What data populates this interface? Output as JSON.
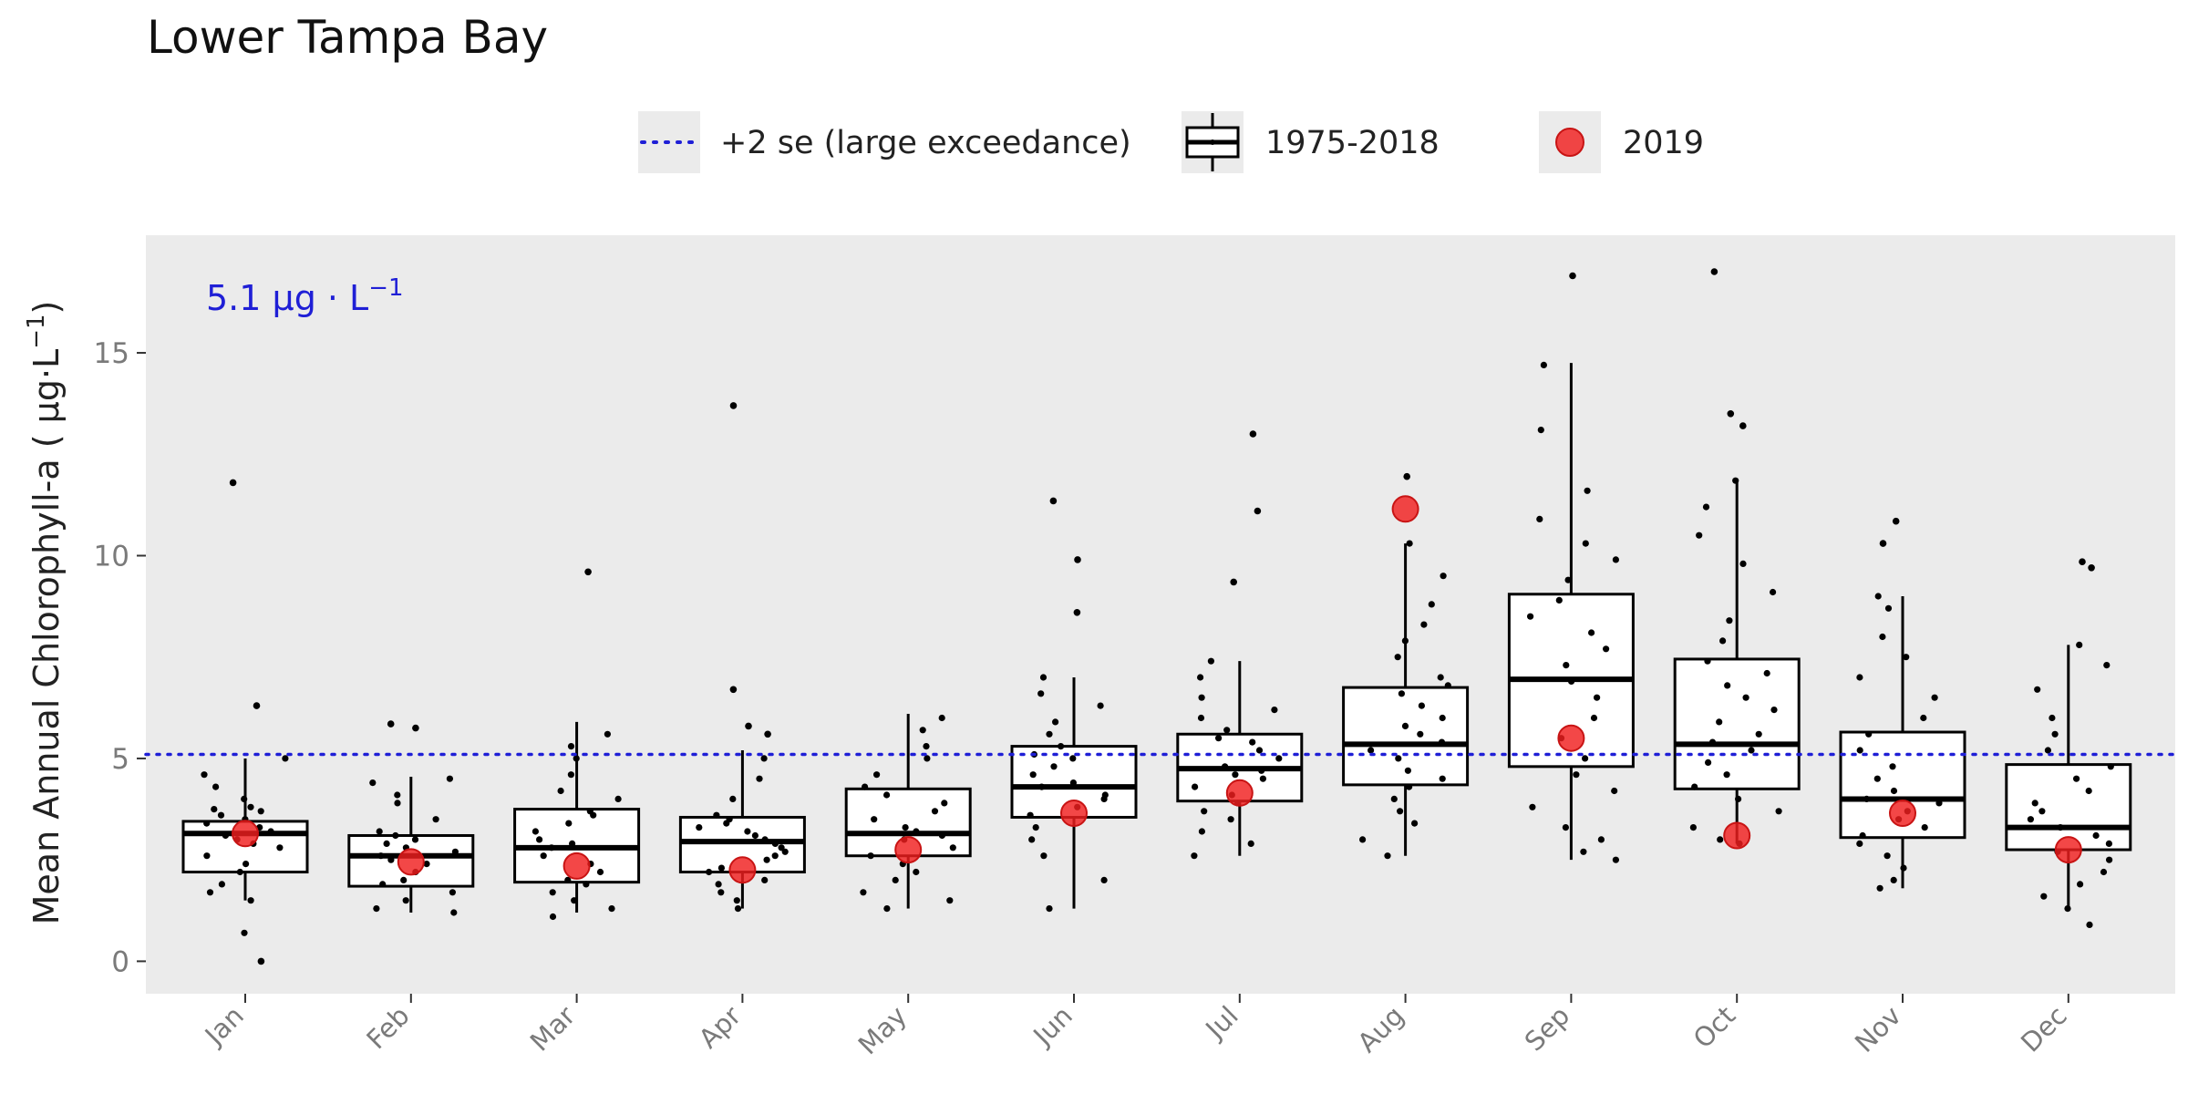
{
  "chart_data": {
    "type": "boxplot",
    "title": "Lower Tampa Bay",
    "xlabel": "",
    "ylabel": "Mean Annual Chlorophyll-a ( µg·L",
    "ylabel_sup": "−1",
    "ylabel_close": ")",
    "ylim": [
      -0.8,
      17.9
    ],
    "yticks": [
      "0",
      "5",
      "10",
      "15"
    ],
    "categories": [
      "Jan",
      "Feb",
      "Mar",
      "Apr",
      "May",
      "Jun",
      "Jul",
      "Aug",
      "Sep",
      "Oct",
      "Nov",
      "Dec"
    ],
    "threshold": {
      "value": 5.1,
      "label_main": "5.1 µg · L",
      "label_sup": "−1",
      "color": "#1f1fd6",
      "linestyle": "dotted"
    },
    "legend": [
      {
        "label": "+2 se (large exceedance)",
        "type": "dotted-line"
      },
      {
        "label": "1975-2018",
        "type": "boxplot"
      },
      {
        "label": "2019",
        "type": "red-point"
      }
    ],
    "colors": {
      "panel": "#ebebeb",
      "box_fill": "#ffffff",
      "highlight": "#f01e1e",
      "points": "#000000"
    },
    "boxes": [
      {
        "month": "Jan",
        "whisker_low": 1.5,
        "q1": 2.2,
        "median": 3.15,
        "q3": 3.45,
        "whisker_high": 5.0,
        "outliers": [
          0.0,
          6.3,
          11.8
        ]
      },
      {
        "month": "Feb",
        "whisker_low": 1.2,
        "q1": 1.85,
        "median": 2.6,
        "q3": 3.1,
        "whisker_high": 4.55,
        "outliers": [
          5.75,
          5.85
        ]
      },
      {
        "month": "Mar",
        "whisker_low": 1.2,
        "q1": 1.95,
        "median": 2.8,
        "q3": 3.75,
        "whisker_high": 5.9,
        "outliers": [
          9.6
        ]
      },
      {
        "month": "Apr",
        "whisker_low": 1.3,
        "q1": 2.2,
        "median": 2.95,
        "q3": 3.55,
        "whisker_high": 5.2,
        "outliers": [
          5.6,
          5.8,
          6.7,
          13.7
        ]
      },
      {
        "month": "May",
        "whisker_low": 1.3,
        "q1": 2.6,
        "median": 3.15,
        "q3": 4.25,
        "whisker_high": 6.1,
        "outliers": []
      },
      {
        "month": "Jun",
        "whisker_low": 1.3,
        "q1": 3.55,
        "median": 4.3,
        "q3": 5.3,
        "whisker_high": 7.0,
        "outliers": [
          8.6,
          9.9,
          11.35
        ]
      },
      {
        "month": "Jul",
        "whisker_low": 2.6,
        "q1": 3.95,
        "median": 4.75,
        "q3": 5.6,
        "whisker_high": 7.4,
        "outliers": [
          9.35,
          11.1,
          13.0
        ]
      },
      {
        "month": "Aug",
        "whisker_low": 2.6,
        "q1": 4.35,
        "median": 5.35,
        "q3": 6.75,
        "whisker_high": 10.3,
        "outliers": [
          11.95
        ]
      },
      {
        "month": "Sep",
        "whisker_low": 2.5,
        "q1": 4.8,
        "median": 6.95,
        "q3": 9.05,
        "whisker_high": 14.75,
        "outliers": [
          16.9
        ]
      },
      {
        "month": "Oct",
        "whisker_low": 2.9,
        "q1": 4.25,
        "median": 5.35,
        "q3": 7.45,
        "whisker_high": 11.85,
        "outliers": [
          13.2,
          13.5,
          17.0
        ]
      },
      {
        "month": "Nov",
        "whisker_low": 1.8,
        "q1": 3.05,
        "median": 4.0,
        "q3": 5.65,
        "whisker_high": 9.0,
        "outliers": [
          10.3,
          10.85
        ]
      },
      {
        "month": "Dec",
        "whisker_low": 1.3,
        "q1": 2.75,
        "median": 3.3,
        "q3": 4.85,
        "whisker_high": 7.8,
        "outliers": [
          9.7,
          9.85
        ]
      }
    ],
    "jitter_points": [
      [
        0.7,
        1.5,
        1.7,
        1.9,
        2.2,
        2.4,
        2.6,
        2.8,
        2.9,
        3.0,
        3.1,
        3.2,
        3.3,
        3.4,
        3.5,
        3.6,
        3.7,
        3.75,
        3.8,
        4.0,
        4.3,
        4.6,
        5.0
      ],
      [
        1.2,
        1.3,
        1.5,
        1.7,
        1.9,
        2.0,
        2.2,
        2.4,
        2.5,
        2.6,
        2.7,
        2.8,
        2.9,
        3.0,
        3.1,
        3.2,
        3.5,
        3.9,
        4.1,
        4.4,
        4.5
      ],
      [
        1.1,
        1.3,
        1.5,
        1.7,
        1.9,
        2.0,
        2.2,
        2.4,
        2.6,
        2.8,
        2.9,
        3.0,
        3.2,
        3.4,
        3.6,
        3.7,
        4.0,
        4.2,
        4.6,
        5.0,
        5.3,
        5.6
      ],
      [
        1.3,
        1.5,
        1.7,
        1.9,
        2.0,
        2.2,
        2.3,
        2.5,
        2.6,
        2.7,
        2.8,
        2.9,
        3.0,
        3.1,
        3.2,
        3.3,
        3.4,
        3.5,
        3.6,
        4.0,
        4.5,
        5.0
      ],
      [
        1.3,
        1.5,
        1.7,
        2.0,
        2.2,
        2.4,
        2.6,
        2.8,
        3.0,
        3.1,
        3.2,
        3.3,
        3.5,
        3.7,
        3.9,
        4.1,
        4.3,
        4.6,
        5.0,
        5.3,
        5.7,
        6.0
      ],
      [
        1.3,
        2.0,
        2.6,
        3.0,
        3.3,
        3.6,
        3.8,
        4.0,
        4.1,
        4.3,
        4.4,
        4.6,
        4.8,
        5.0,
        5.1,
        5.3,
        5.6,
        5.9,
        6.3,
        6.6,
        7.0
      ],
      [
        2.6,
        2.9,
        3.2,
        3.5,
        3.7,
        3.9,
        4.1,
        4.3,
        4.5,
        4.6,
        4.7,
        4.8,
        5.0,
        5.2,
        5.4,
        5.5,
        5.7,
        6.0,
        6.2,
        6.5,
        7.0,
        7.4
      ],
      [
        2.6,
        3.0,
        3.4,
        3.7,
        4.0,
        4.3,
        4.5,
        4.7,
        5.0,
        5.2,
        5.4,
        5.6,
        5.8,
        6.0,
        6.3,
        6.6,
        6.8,
        7.0,
        7.5,
        7.9,
        8.3,
        8.8,
        9.5,
        10.3
      ],
      [
        2.5,
        2.7,
        3.0,
        3.3,
        3.8,
        4.2,
        4.6,
        5.0,
        5.5,
        6.0,
        6.5,
        6.9,
        7.3,
        7.7,
        8.1,
        8.5,
        8.9,
        9.4,
        9.9,
        10.3,
        10.9,
        11.6,
        13.1,
        14.7
      ],
      [
        2.9,
        3.0,
        3.3,
        3.7,
        4.0,
        4.3,
        4.6,
        4.9,
        5.2,
        5.4,
        5.6,
        5.9,
        6.2,
        6.5,
        6.8,
        7.1,
        7.4,
        7.9,
        8.4,
        9.1,
        9.8,
        10.5,
        11.2,
        11.85
      ],
      [
        1.8,
        2.0,
        2.3,
        2.6,
        2.9,
        3.1,
        3.3,
        3.5,
        3.7,
        3.9,
        4.0,
        4.2,
        4.5,
        4.8,
        5.2,
        5.6,
        6.0,
        6.5,
        7.0,
        7.5,
        8.0,
        8.7,
        9.0
      ],
      [
        0.9,
        1.3,
        1.6,
        1.9,
        2.2,
        2.5,
        2.7,
        2.9,
        3.1,
        3.3,
        3.5,
        3.7,
        3.9,
        4.2,
        4.5,
        4.8,
        5.2,
        5.6,
        6.0,
        6.7,
        7.3,
        7.8
      ]
    ],
    "highlight_2019": [
      3.15,
      2.45,
      2.35,
      2.25,
      2.75,
      3.65,
      4.15,
      11.15,
      5.5,
      3.1,
      3.65,
      2.75
    ]
  }
}
